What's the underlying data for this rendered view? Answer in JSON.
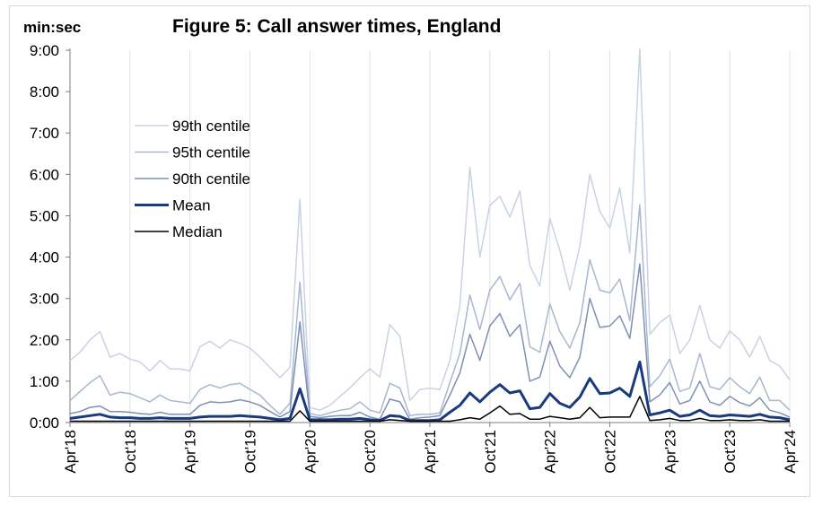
{
  "chart_data": {
    "type": "line",
    "title": "Figure 5: Call answer times, England",
    "ylabel": "min:sec",
    "xlabel": "",
    "ylim": [
      0,
      540
    ],
    "y_ticks": [
      {
        "value": 0,
        "label": "0:00"
      },
      {
        "value": 60,
        "label": "1:00"
      },
      {
        "value": 120,
        "label": "2:00"
      },
      {
        "value": 180,
        "label": "3:00"
      },
      {
        "value": 240,
        "label": "4:00"
      },
      {
        "value": 300,
        "label": "5:00"
      },
      {
        "value": 360,
        "label": "6:00"
      },
      {
        "value": 420,
        "label": "7:00"
      },
      {
        "value": 480,
        "label": "8:00"
      },
      {
        "value": 540,
        "label": "9:00"
      }
    ],
    "x_ticks": [
      {
        "index": 0,
        "label": "Apr'18"
      },
      {
        "index": 6,
        "label": "Oct'18"
      },
      {
        "index": 12,
        "label": "Apr'19"
      },
      {
        "index": 18,
        "label": "Oct'19"
      },
      {
        "index": 24,
        "label": "Apr'20"
      },
      {
        "index": 30,
        "label": "Oct'20"
      },
      {
        "index": 36,
        "label": "Apr'21"
      },
      {
        "index": 42,
        "label": "Oct'21"
      },
      {
        "index": 48,
        "label": "Apr'22"
      },
      {
        "index": 54,
        "label": "Oct'22"
      },
      {
        "index": 60,
        "label": "Apr'23"
      },
      {
        "index": 66,
        "label": "Oct'23"
      },
      {
        "index": 72,
        "label": "Apr'24"
      }
    ],
    "grid": "vertical",
    "legend": "top-left",
    "series": [
      {
        "name": "99th centile",
        "color": "#c9d2e3",
        "width": 1.5,
        "values": [
          90,
          102,
          120,
          132,
          95,
          100,
          92,
          88,
          75,
          90,
          78,
          78,
          75,
          110,
          118,
          108,
          120,
          115,
          108,
          95,
          80,
          65,
          80,
          324,
          22,
          18,
          25,
          38,
          50,
          65,
          78,
          66,
          142,
          125,
          32,
          48,
          50,
          48,
          90,
          170,
          370,
          240,
          315,
          328,
          298,
          336,
          228,
          198,
          296,
          250,
          192,
          256,
          360,
          306,
          282,
          340,
          246,
          542,
          128,
          145,
          156,
          100,
          120,
          170,
          120,
          108,
          133,
          120,
          95,
          125,
          90,
          82,
          62
        ]
      },
      {
        "name": "95th centile",
        "color": "#a9b7d0",
        "width": 1.5,
        "values": [
          32,
          45,
          58,
          68,
          40,
          44,
          42,
          36,
          30,
          40,
          32,
          30,
          28,
          48,
          55,
          50,
          55,
          57,
          48,
          40,
          25,
          12,
          28,
          204,
          13,
          10,
          14,
          18,
          20,
          30,
          18,
          14,
          57,
          50,
          10,
          12,
          12,
          14,
          58,
          100,
          185,
          135,
          192,
          212,
          178,
          202,
          110,
          102,
          172,
          132,
          108,
          145,
          236,
          192,
          188,
          208,
          148,
          316,
          52,
          68,
          92,
          45,
          50,
          100,
          52,
          48,
          65,
          52,
          42,
          66,
          32,
          32,
          18
        ]
      },
      {
        "name": "90th centile",
        "color": "#7e90b3",
        "width": 1.5,
        "values": [
          13,
          16,
          22,
          24,
          16,
          16,
          15,
          13,
          12,
          15,
          12,
          12,
          12,
          25,
          30,
          29,
          30,
          33,
          30,
          25,
          16,
          8,
          16,
          146,
          9,
          7,
          9,
          10,
          10,
          15,
          8,
          5,
          34,
          30,
          5,
          7,
          8,
          10,
          40,
          72,
          128,
          90,
          140,
          158,
          125,
          142,
          60,
          66,
          118,
          82,
          65,
          95,
          180,
          138,
          140,
          155,
          122,
          230,
          30,
          40,
          58,
          27,
          32,
          60,
          30,
          25,
          38,
          29,
          24,
          36,
          18,
          14,
          8
        ]
      },
      {
        "name": "Mean",
        "color": "#1a3a80",
        "width": 3,
        "values": [
          6,
          8,
          10,
          12,
          8,
          7,
          7,
          6,
          6,
          7,
          6,
          6,
          6,
          8,
          9,
          9,
          9,
          10,
          9,
          8,
          6,
          4,
          6,
          49,
          4,
          4,
          4,
          5,
          5,
          6,
          4,
          3,
          10,
          9,
          3,
          3,
          3,
          4,
          15,
          25,
          43,
          30,
          44,
          55,
          43,
          46,
          20,
          22,
          42,
          28,
          22,
          37,
          64,
          42,
          43,
          50,
          38,
          88,
          11,
          14,
          18,
          9,
          11,
          18,
          10,
          9,
          11,
          10,
          9,
          12,
          8,
          7,
          4
        ]
      },
      {
        "name": "Median",
        "color": "#000000",
        "width": 1.5,
        "values": [
          2,
          2,
          2,
          2,
          2,
          2,
          2,
          2,
          2,
          2,
          2,
          2,
          2,
          2,
          2,
          2,
          2,
          2,
          2,
          2,
          2,
          2,
          2,
          17,
          2,
          2,
          2,
          2,
          2,
          2,
          2,
          2,
          4,
          3,
          2,
          2,
          2,
          2,
          2,
          4,
          7,
          5,
          14,
          24,
          12,
          13,
          5,
          5,
          9,
          7,
          5,
          7,
          22,
          7,
          8,
          8,
          8,
          38,
          3,
          4,
          6,
          3,
          3,
          6,
          3,
          3,
          4,
          3,
          3,
          4,
          2,
          2,
          2
        ]
      }
    ]
  }
}
